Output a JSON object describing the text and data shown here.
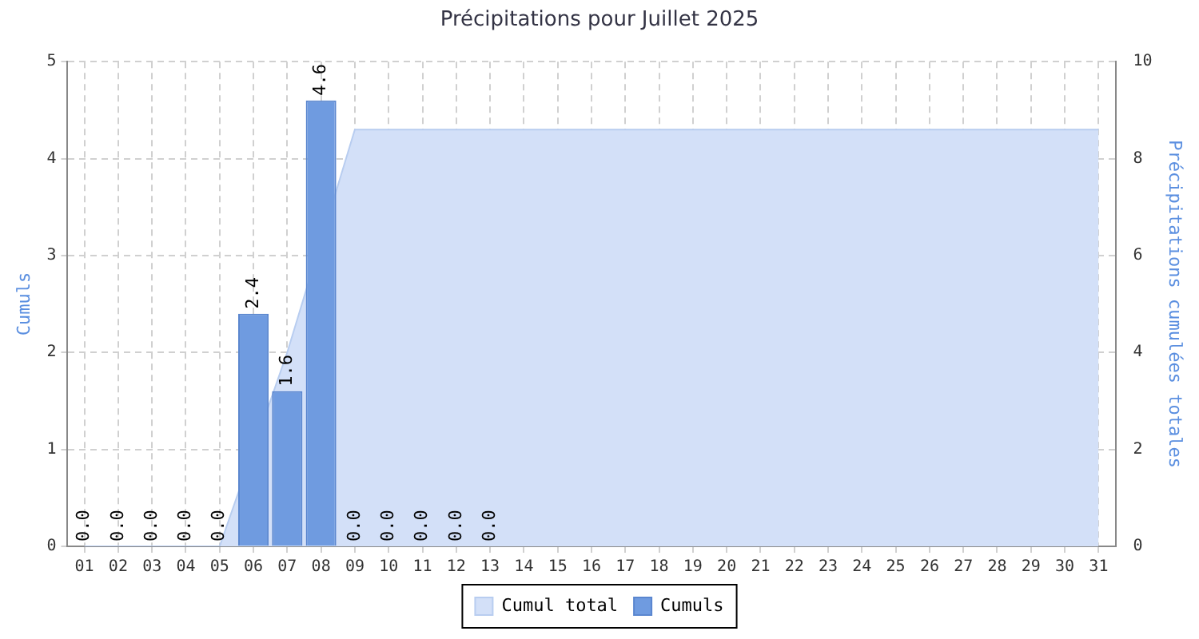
{
  "chart_data": {
    "type": "bar",
    "title": "Précipitations pour Juillet 2025",
    "ylabel": "Cumuls",
    "y2label": "Précipitations cumulées totales",
    "categories": [
      "01",
      "02",
      "03",
      "04",
      "05",
      "06",
      "07",
      "08",
      "09",
      "10",
      "11",
      "12",
      "13",
      "14",
      "15",
      "16",
      "17",
      "18",
      "19",
      "20",
      "21",
      "22",
      "23",
      "24",
      "25",
      "26",
      "27",
      "28",
      "29",
      "30",
      "31"
    ],
    "series": [
      {
        "name": "Cumul total",
        "type": "area",
        "axis": "y2",
        "color": "#d3e0f8",
        "values": [
          0,
          0,
          0,
          0,
          0,
          null,
          4.0,
          null,
          8.6,
          8.6,
          8.6,
          8.6,
          8.6,
          8.6,
          8.6,
          8.6,
          8.6,
          8.6,
          8.6,
          8.6,
          8.6,
          8.6,
          8.6,
          8.6,
          8.6,
          8.6,
          8.6,
          8.6,
          8.6,
          8.6,
          8.6
        ]
      },
      {
        "name": "Cumuls",
        "color": "#6f9be0",
        "values": [
          0,
          0,
          0,
          0,
          0,
          2.4,
          1.6,
          4.6,
          0,
          0,
          0,
          0,
          0,
          null,
          null,
          null,
          null,
          null,
          null,
          null,
          null,
          null,
          null,
          null,
          null,
          null,
          null,
          null,
          null,
          null,
          null
        ],
        "value_labels": [
          "0.0",
          "0.0",
          "0.0",
          "0.0",
          "0.0",
          "2.4",
          "1.6",
          "4.6",
          "0.0",
          "0.0",
          "0.0",
          "0.0",
          "0.0",
          null,
          null,
          null,
          null,
          null,
          null,
          null,
          null,
          null,
          null,
          null,
          null,
          null,
          null,
          null,
          null,
          null,
          null
        ]
      }
    ],
    "ylim": [
      0,
      5
    ],
    "yticks": [
      0,
      1,
      2,
      3,
      4,
      5
    ],
    "y2lim": [
      0,
      10
    ],
    "y2ticks": [
      0,
      2,
      4,
      6,
      8,
      10
    ],
    "grid": true,
    "legend": "bottom"
  }
}
